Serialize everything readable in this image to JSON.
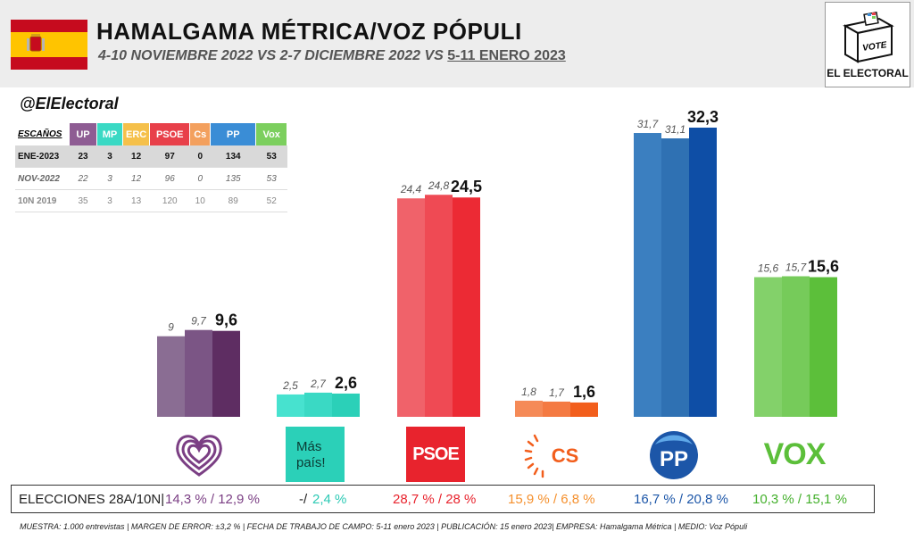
{
  "header": {
    "title": "HAMALGAMA MÉTRICA/VOZ PÓPULI",
    "subtitle_a": "4-10 NOVIEMBRE 2022",
    "vs1": " VS ",
    "subtitle_b": "2-7 DICIEMBRE 2022",
    "vs2": " VS ",
    "subtitle_c": "5-11 ENERO 2023",
    "logo_vote": "VOTE",
    "logo_label": "EL ELECTORAL"
  },
  "handle": "@ElElectoral",
  "seats": {
    "header": "ESCAÑOS",
    "parties": [
      "UP",
      "MP",
      "ERC",
      "PSOE",
      "Cs",
      "PP",
      "Vox"
    ],
    "party_colors": [
      "#8e5c93",
      "#3ad9c4",
      "#f5c04a",
      "#e8404a",
      "#f3a05e",
      "#3a8dd6",
      "#7ccf5e"
    ],
    "rows": [
      {
        "label": "ENE-2023",
        "values": [
          "23",
          "3",
          "12",
          "97",
          "0",
          "134",
          "53"
        ]
      },
      {
        "label": "NOV-2022",
        "values": [
          "22",
          "3",
          "12",
          "96",
          "0",
          "135",
          "53"
        ]
      },
      {
        "label": "10N 2019",
        "values": [
          "35",
          "3",
          "13",
          "120",
          "10",
          "89",
          "52"
        ]
      }
    ]
  },
  "chart_data": {
    "type": "bar",
    "categories": [
      "UP",
      "Más País",
      "PSOE",
      "Cs",
      "PP",
      "Vox"
    ],
    "series": [
      {
        "values": [
          9,
          2.5,
          24.4,
          1.8,
          31.7,
          15.6
        ],
        "labels": [
          "9",
          "2,5",
          "24,4",
          "1,8",
          "31,7",
          "15,6"
        ]
      },
      {
        "values": [
          9.7,
          2.7,
          24.8,
          1.7,
          31.1,
          15.7
        ],
        "labels": [
          "9,7",
          "2,7",
          "24,8",
          "1,7",
          "31,1",
          "15,7"
        ]
      },
      {
        "values": [
          9.6,
          2.6,
          24.5,
          1.6,
          32.3,
          15.6
        ],
        "labels": [
          "9,6",
          "2,6",
          "24,5",
          "1,6",
          "32,3",
          "15,6"
        ]
      }
    ],
    "colors": [
      [
        "#8a6d93",
        "#7b5585",
        "#5e2d62"
      ],
      [
        "#47e2cf",
        "#3ad9c4",
        "#2bd0b8"
      ],
      [
        "#f0626a",
        "#ef4a54",
        "#ec2a34"
      ],
      [
        "#f58a57",
        "#f47a42",
        "#f25e1c"
      ],
      [
        "#3b7fc0",
        "#2f71b3",
        "#0e4ea6"
      ],
      [
        "#83d16a",
        "#76cb5a",
        "#5cbf3a"
      ]
    ]
  },
  "logos": {
    "mp_text1": "Más",
    "mp_text2": "país!",
    "psoe_text": "PSOE",
    "cs_text": "CS",
    "pp_text": "PP",
    "vox_text": "VOX"
  },
  "elections": {
    "label": "ELECCIONES 28A/10N|",
    "values": [
      "14,3 % / 12,9 %",
      "-/",
      "2,4 %",
      "28,7  % / 28 %",
      "15,9 % / 6,8 %",
      "16,7 % / 20,8 %",
      "10,3 % / 15,1 %"
    ],
    "colors": [
      "#7b3f84",
      "#222222",
      "#2bc9b4",
      "#e8232d",
      "#f5902d",
      "#1c56a8",
      "#44b02c"
    ]
  },
  "footer": "MUESTRA: 1.000 entrevistas | MARGEN DE ERROR: ±3,2 % | FECHA DE TRABAJO DE CAMPO: 5-11 enero 2023 |  PUBLICACIÓN: 15 enero 2023| EMPRESA: Hamalgama Métrica | MEDIO: Voz Pópuli"
}
